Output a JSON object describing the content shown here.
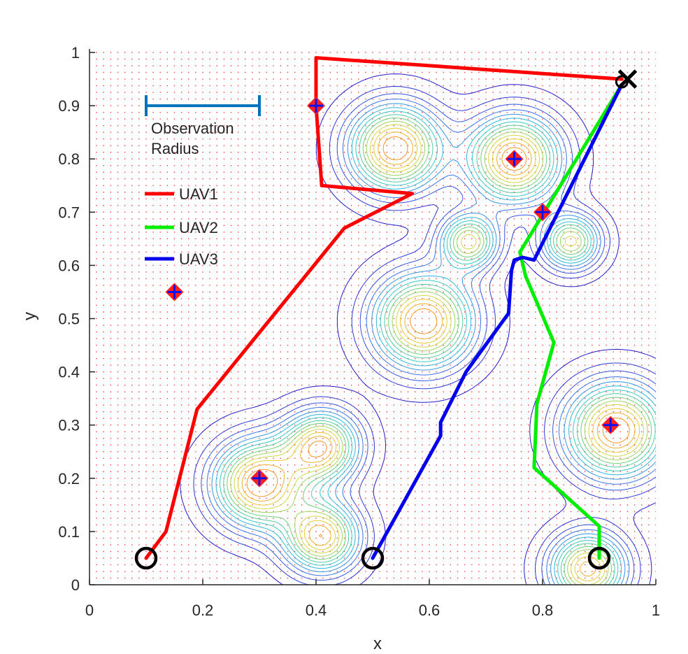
{
  "chart_data": {
    "type": "line",
    "xlabel": "x",
    "ylabel": "y",
    "xlim": [
      0,
      1
    ],
    "ylim": [
      0,
      1
    ],
    "xticks": [
      0,
      0.2,
      0.4,
      0.6,
      0.8,
      1
    ],
    "yticks": [
      0,
      0.1,
      0.2,
      0.3,
      0.4,
      0.5,
      0.6,
      0.7,
      0.8,
      0.9,
      1
    ],
    "xtick_labels": [
      "0",
      "0.2",
      "0.4",
      "0.6",
      "0.8",
      "1"
    ],
    "ytick_labels": [
      "0",
      "0.1",
      "0.2",
      "0.3",
      "0.4",
      "0.5",
      "0.6",
      "0.7",
      "0.8",
      "0.9",
      "1"
    ],
    "series": [
      {
        "name": "UAV1",
        "color": "#ff0000",
        "x": [
          0.1,
          0.135,
          0.19,
          0.45,
          0.57,
          0.41,
          0.4,
          0.4,
          0.94
        ],
        "y": [
          0.05,
          0.1,
          0.33,
          0.67,
          0.735,
          0.75,
          0.9,
          0.99,
          0.95
        ]
      },
      {
        "name": "UAV2",
        "color": "#00ee00",
        "x": [
          0.9,
          0.9,
          0.785,
          0.79,
          0.82,
          0.77,
          0.76,
          0.94
        ],
        "y": [
          0.05,
          0.11,
          0.22,
          0.34,
          0.455,
          0.58,
          0.625,
          0.94
        ]
      },
      {
        "name": "UAV3",
        "color": "#0000ee",
        "x": [
          0.5,
          0.62,
          0.62,
          0.665,
          0.74,
          0.745,
          0.75,
          0.765,
          0.785,
          0.94
        ],
        "y": [
          0.05,
          0.28,
          0.305,
          0.4,
          0.51,
          0.59,
          0.61,
          0.615,
          0.61,
          0.94
        ]
      }
    ],
    "start_points": [
      {
        "x": 0.1,
        "y": 0.05
      },
      {
        "x": 0.5,
        "y": 0.05
      },
      {
        "x": 0.9,
        "y": 0.05
      }
    ],
    "goal_point": {
      "x": 0.94,
      "y": 0.945
    },
    "goal_marker": {
      "x": 0.95,
      "y": 0.95
    },
    "targets": [
      {
        "x": 0.15,
        "y": 0.55
      },
      {
        "x": 0.4,
        "y": 0.9
      },
      {
        "x": 0.3,
        "y": 0.2
      },
      {
        "x": 0.75,
        "y": 0.8
      },
      {
        "x": 0.8,
        "y": 0.7
      },
      {
        "x": 0.92,
        "y": 0.3
      }
    ],
    "contour_peaks": [
      {
        "x": 0.54,
        "y": 0.82,
        "s": 0.055,
        "a": 1.0
      },
      {
        "x": 0.75,
        "y": 0.8,
        "s": 0.055,
        "a": 1.0
      },
      {
        "x": 0.67,
        "y": 0.645,
        "s": 0.035,
        "a": 0.75
      },
      {
        "x": 0.85,
        "y": 0.645,
        "s": 0.035,
        "a": 0.75
      },
      {
        "x": 0.59,
        "y": 0.495,
        "s": 0.06,
        "a": 1.0
      },
      {
        "x": 0.3,
        "y": 0.19,
        "s": 0.055,
        "a": 1.0
      },
      {
        "x": 0.41,
        "y": 0.26,
        "s": 0.045,
        "a": 0.9
      },
      {
        "x": 0.41,
        "y": 0.09,
        "s": 0.045,
        "a": 0.9
      },
      {
        "x": 0.93,
        "y": 0.29,
        "s": 0.06,
        "a": 1.0
      },
      {
        "x": 0.88,
        "y": 0.03,
        "s": 0.045,
        "a": 0.9
      }
    ],
    "legend": {
      "placement": "upper-left",
      "entries": [
        "UAV1",
        "UAV2",
        "UAV3"
      ]
    },
    "annotation": {
      "label_line1": "Observation",
      "label_line2": "Radius",
      "x_start": 0.1,
      "x_end": 0.3,
      "y": 0.9,
      "color": "#0072bd"
    },
    "grid_dots": true,
    "colors": {
      "grid_dot": "#ff3b3b",
      "axis": "#262626",
      "target_fill": "#ff2020",
      "target_cross": "#1010ee"
    }
  }
}
